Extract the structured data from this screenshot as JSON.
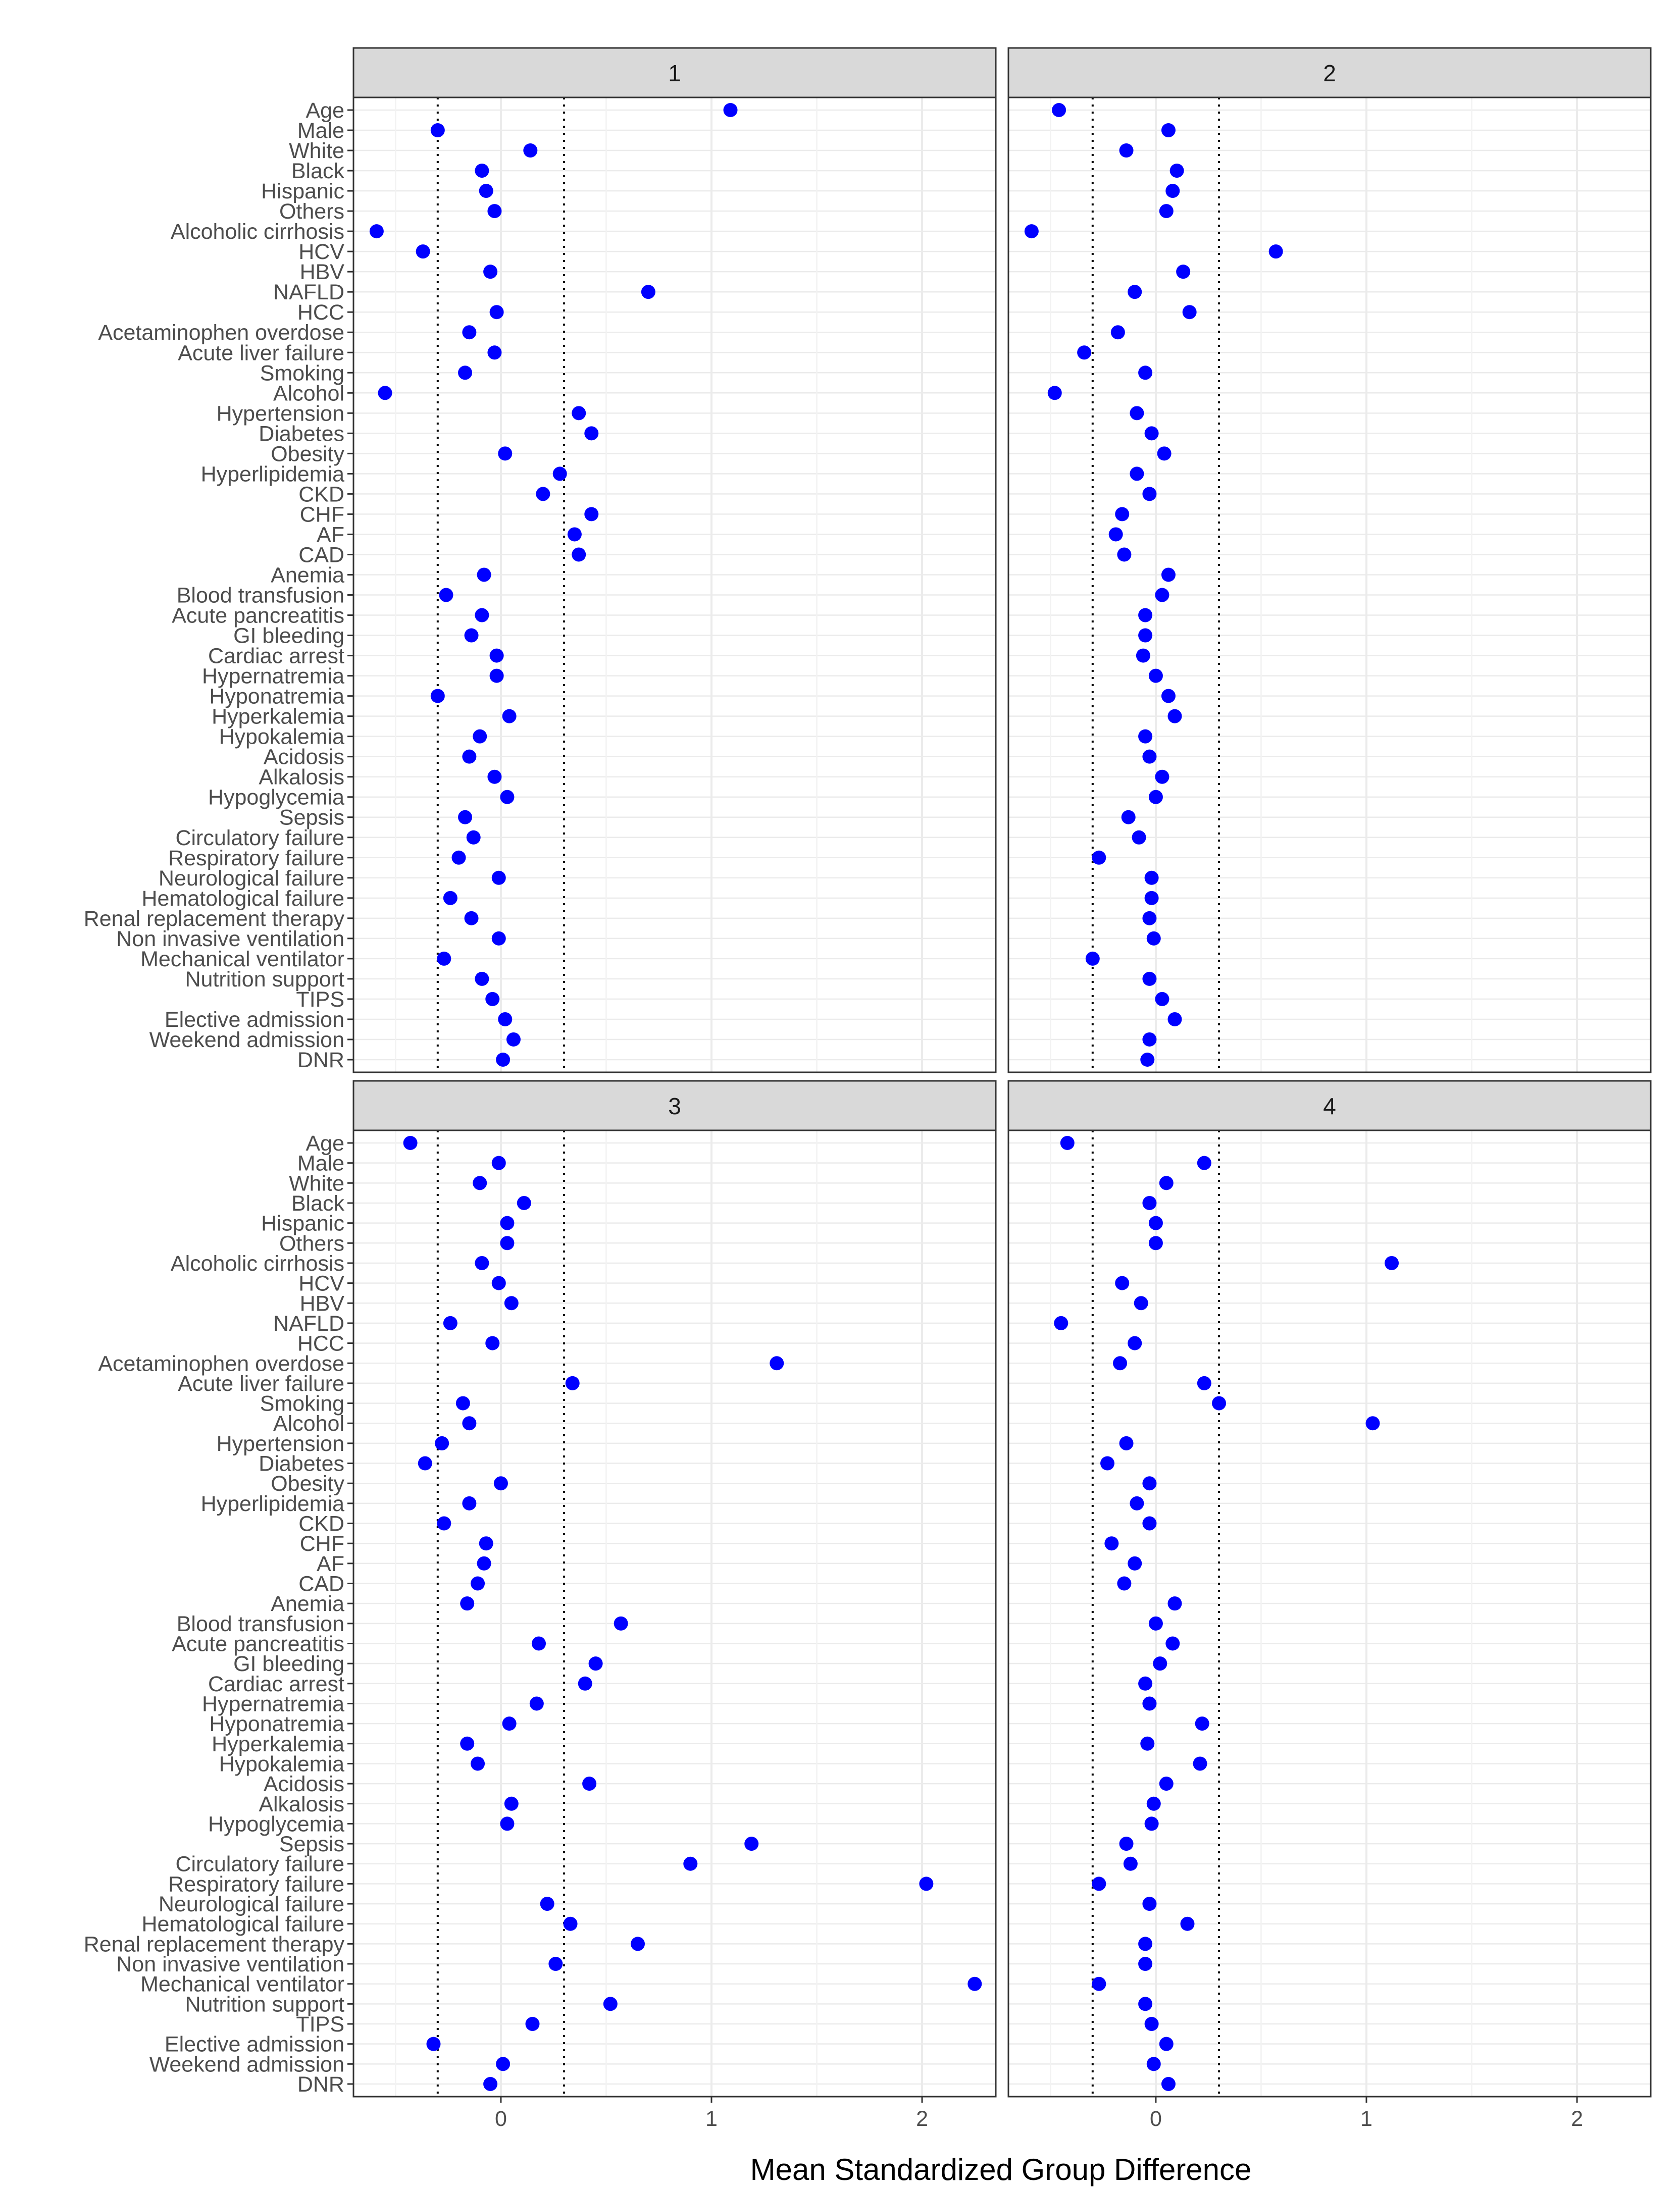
{
  "chart_data": {
    "type": "scatter",
    "layout": "2x2 facets",
    "xlabel": "Mean Standardized Group Difference",
    "ylabel": "",
    "xlim": [
      -0.7,
      2.35
    ],
    "x_ticks": [
      0,
      1,
      2
    ],
    "x_tick_labels": [
      "0",
      "1",
      "2"
    ],
    "reference_lines": [
      -0.3,
      0.3
    ],
    "grid": true,
    "point_color": "#0000FF",
    "categories": [
      "Age",
      "Male",
      "White",
      "Black",
      "Hispanic",
      "Others",
      "Alcoholic cirrhosis",
      "HCV",
      "HBV",
      "NAFLD",
      "HCC",
      "Acetaminophen overdose",
      "Acute liver failure",
      "Smoking",
      "Alcohol",
      "Hypertension",
      "Diabetes",
      "Obesity",
      "Hyperlipidemia",
      "CKD",
      "CHF",
      "AF",
      "CAD",
      "Anemia",
      "Blood transfusion",
      "Acute pancreatitis",
      "GI bleeding",
      "Cardiac arrest",
      "Hypernatremia",
      "Hyponatremia",
      "Hyperkalemia",
      "Hypokalemia",
      "Acidosis",
      "Alkalosis",
      "Hypoglycemia",
      "Sepsis",
      "Circulatory failure",
      "Respiratory failure",
      "Neurological failure",
      "Hematological failure",
      "Renal replacement therapy",
      "Non invasive ventilation",
      "Mechanical ventilator",
      "Nutrition support",
      "TIPS",
      "Elective admission",
      "Weekend admission",
      "DNR"
    ],
    "facets": [
      {
        "name": "1",
        "values": [
          1.09,
          -0.3,
          0.14,
          -0.09,
          -0.07,
          -0.03,
          -0.59,
          -0.37,
          -0.05,
          0.7,
          -0.02,
          -0.15,
          -0.03,
          -0.17,
          -0.55,
          0.37,
          0.43,
          0.02,
          0.28,
          0.2,
          0.43,
          0.35,
          0.37,
          -0.08,
          -0.26,
          -0.09,
          -0.14,
          -0.02,
          -0.02,
          -0.3,
          0.04,
          -0.1,
          -0.15,
          -0.03,
          0.03,
          -0.17,
          -0.13,
          -0.2,
          -0.01,
          -0.24,
          -0.14,
          -0.01,
          -0.27,
          -0.09,
          -0.04,
          0.02,
          0.06,
          0.01
        ]
      },
      {
        "name": "2",
        "values": [
          -0.46,
          0.06,
          -0.14,
          0.1,
          0.08,
          0.05,
          -0.59,
          0.57,
          0.13,
          -0.1,
          0.16,
          -0.18,
          -0.34,
          -0.05,
          -0.48,
          -0.09,
          -0.02,
          0.04,
          -0.09,
          -0.03,
          -0.16,
          -0.19,
          -0.15,
          0.06,
          0.03,
          -0.05,
          -0.05,
          -0.06,
          0.0,
          0.06,
          0.09,
          -0.05,
          -0.03,
          0.03,
          0.0,
          -0.13,
          -0.08,
          -0.27,
          -0.02,
          -0.02,
          -0.03,
          -0.01,
          -0.3,
          -0.03,
          0.03,
          0.09,
          -0.03,
          -0.04
        ]
      },
      {
        "name": "3",
        "values": [
          -0.43,
          -0.01,
          -0.1,
          0.11,
          0.03,
          0.03,
          -0.09,
          -0.01,
          0.05,
          -0.24,
          -0.04,
          1.31,
          0.34,
          -0.18,
          -0.15,
          -0.28,
          -0.36,
          0.0,
          -0.15,
          -0.27,
          -0.07,
          -0.08,
          -0.11,
          -0.16,
          0.57,
          0.18,
          0.45,
          0.4,
          0.17,
          0.04,
          -0.16,
          -0.11,
          0.42,
          0.05,
          0.03,
          1.19,
          0.9,
          2.02,
          0.22,
          0.33,
          0.65,
          0.26,
          2.25,
          0.52,
          0.15,
          -0.32,
          0.01,
          -0.05
        ]
      },
      {
        "name": "4",
        "values": [
          -0.42,
          0.23,
          0.05,
          -0.03,
          0.0,
          0.0,
          1.12,
          -0.16,
          -0.07,
          -0.45,
          -0.1,
          -0.17,
          0.23,
          0.3,
          1.03,
          -0.14,
          -0.23,
          -0.03,
          -0.09,
          -0.03,
          -0.21,
          -0.1,
          -0.15,
          0.09,
          0.0,
          0.08,
          0.02,
          -0.05,
          -0.03,
          0.22,
          -0.04,
          0.21,
          0.05,
          -0.01,
          -0.02,
          -0.14,
          -0.12,
          -0.27,
          -0.03,
          0.15,
          -0.05,
          -0.05,
          -0.27,
          -0.05,
          -0.02,
          0.05,
          -0.01,
          0.06
        ]
      }
    ]
  }
}
